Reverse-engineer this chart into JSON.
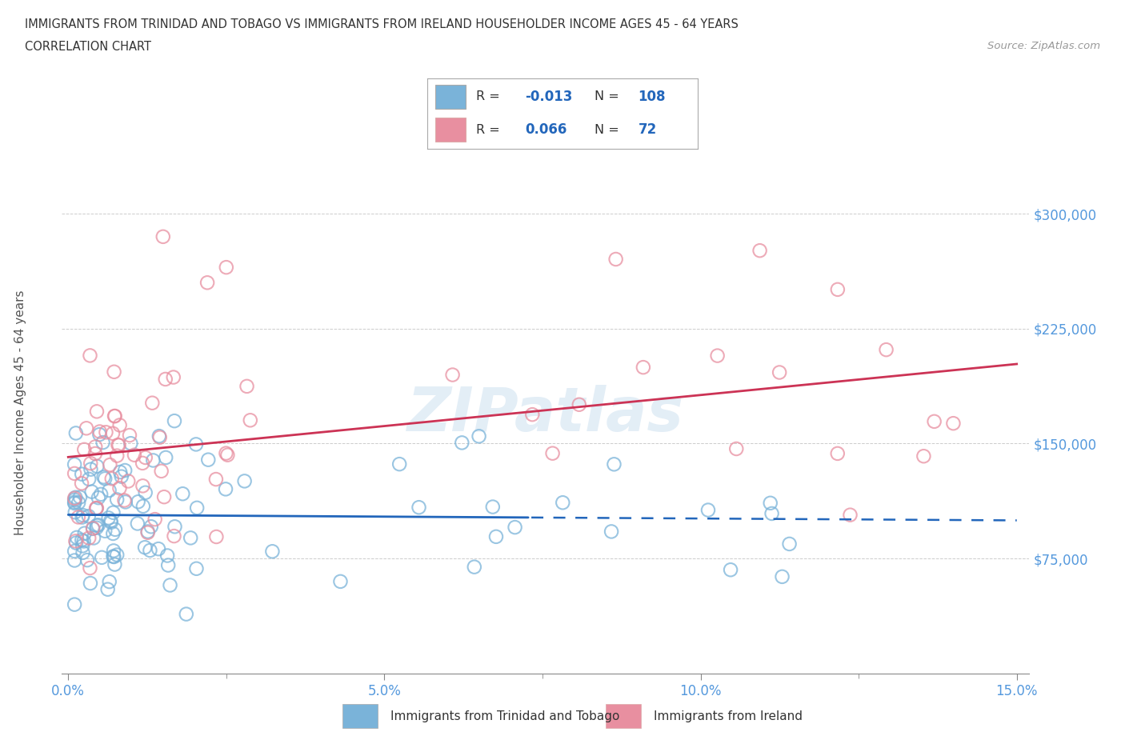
{
  "title_line1": "IMMIGRANTS FROM TRINIDAD AND TOBAGO VS IMMIGRANTS FROM IRELAND HOUSEHOLDER INCOME AGES 45 - 64 YEARS",
  "title_line2": "CORRELATION CHART",
  "source_text": "Source: ZipAtlas.com",
  "ylabel": "Householder Income Ages 45 - 64 years",
  "xlim": [
    -0.001,
    0.152
  ],
  "ylim": [
    0,
    337500
  ],
  "yticks": [
    0,
    75000,
    150000,
    225000,
    300000
  ],
  "ytick_labels": [
    "",
    "$75,000",
    "$150,000",
    "$225,000",
    "$300,000"
  ],
  "xticks": [
    0.0,
    0.05,
    0.1,
    0.15
  ],
  "xtick_labels": [
    "0.0%",
    "5.0%",
    "10.0%",
    "15.0%"
  ],
  "watermark": "ZIPatlas",
  "legend_R1": "-0.013",
  "legend_N1": "108",
  "legend_R2": "0.066",
  "legend_N2": "72",
  "series1_label": "Immigrants from Trinidad and Tobago",
  "series2_label": "Immigrants from Ireland",
  "series1_color": "#7ab3d9",
  "series2_color": "#e88fa0",
  "series1_line_color": "#2266bb",
  "series2_line_color": "#cc3355",
  "background_color": "#ffffff",
  "grid_color": "#aaaaaa",
  "title_color": "#333333",
  "tick_label_color": "#5599dd"
}
